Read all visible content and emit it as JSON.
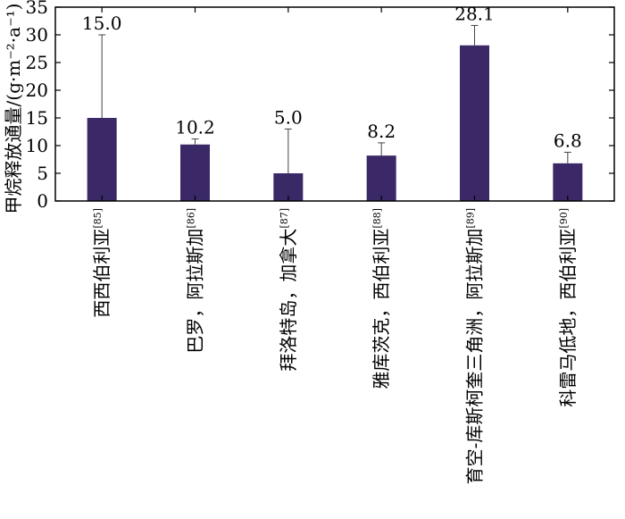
{
  "chart_data": {
    "type": "bar",
    "ylabel": "甲烷释放通量/(g·m⁻²·a⁻¹)",
    "xlabel": "",
    "ylim": [
      0,
      35
    ],
    "yticks": [
      "0",
      "5",
      "10",
      "15",
      "20",
      "25",
      "30",
      "35"
    ],
    "grid": false,
    "bar_color": "#3b2866",
    "categories": [
      {
        "name": "西西伯利亚",
        "ref": "[85]"
      },
      {
        "name": "巴罗，阿拉斯加",
        "ref": "[86]"
      },
      {
        "name": "拜洛特岛，加拿大",
        "ref": "[87]"
      },
      {
        "name": "雅库茨克，西伯利亚",
        "ref": "[88]"
      },
      {
        "name": "育空-库斯柯奎三角洲，阿拉斯加",
        "ref": "[89]"
      },
      {
        "name": "科雷马低地，西伯利亚",
        "ref": "[90]"
      }
    ],
    "values": [
      15.0,
      10.2,
      5.0,
      8.2,
      28.1,
      6.8
    ],
    "labels": [
      "15.0",
      "10.2",
      "5.0",
      "8.2",
      "28.1",
      "6.8"
    ],
    "errors": [
      15.0,
      1.0,
      8.0,
      2.3,
      3.6,
      2.0
    ]
  }
}
